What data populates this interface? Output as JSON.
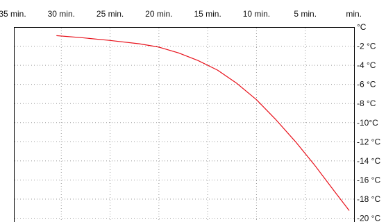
{
  "chart_data": {
    "type": "line",
    "x_tick_labels": [
      "35 min.",
      "30 min.",
      "25 min.",
      "20 min.",
      "15 min.",
      "10 min.",
      "5 min.",
      "min."
    ],
    "x_tick_values": [
      35,
      30,
      25,
      20,
      15,
      10,
      5,
      0
    ],
    "y_tick_labels": [
      "°C",
      "-2 °C",
      "-4 °C",
      "-6 °C",
      "-8 °C",
      "-10°C",
      "-12 °C",
      "-14 °C",
      "-16 °C",
      "-18 °C",
      "-20 °C"
    ],
    "y_tick_values": [
      0,
      -2,
      -4,
      -6,
      -8,
      -10,
      -12,
      -14,
      -16,
      -18,
      -20
    ],
    "xlim": [
      35,
      0
    ],
    "ylim": [
      0,
      -20
    ],
    "grid": true,
    "series": [
      {
        "color": "#e8101a",
        "x": [
          30.5,
          28,
          25,
          22,
          20,
          18,
          16,
          14,
          12,
          10,
          8,
          6,
          4,
          2,
          0.5
        ],
        "y": [
          -0.9,
          -1.1,
          -1.4,
          -1.75,
          -2.1,
          -2.7,
          -3.5,
          -4.5,
          -5.9,
          -7.6,
          -9.7,
          -12.0,
          -14.5,
          -17.2,
          -19.2
        ]
      }
    ]
  }
}
